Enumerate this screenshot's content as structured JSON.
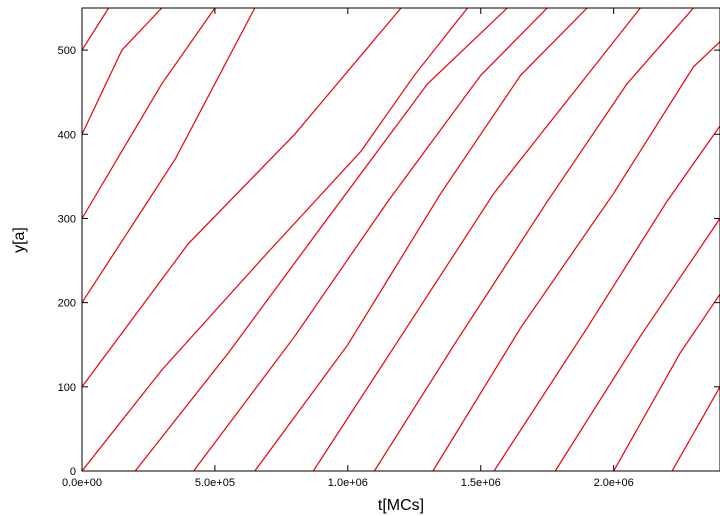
{
  "chart_data": {
    "type": "line",
    "title": "",
    "xlabel": "t[MCs]",
    "ylabel": "y[a]",
    "xlim": [
      0,
      2400000
    ],
    "ylim": [
      0,
      550
    ],
    "x_ticks": [
      {
        "value": 0,
        "label": "0.0e+00"
      },
      {
        "value": 500000,
        "label": "5.0e+05"
      },
      {
        "value": 1000000,
        "label": "1.0e+06"
      },
      {
        "value": 1500000,
        "label": "1.5e+06"
      },
      {
        "value": 2000000,
        "label": "2.0e+06"
      }
    ],
    "y_ticks": [
      {
        "value": 0,
        "label": "0"
      },
      {
        "value": 100,
        "label": "100"
      },
      {
        "value": 200,
        "label": "200"
      },
      {
        "value": 300,
        "label": "300"
      },
      {
        "value": 400,
        "label": "400"
      },
      {
        "value": 500,
        "label": "500"
      }
    ],
    "grid": false,
    "legend": "none",
    "line_color": "#e8000b",
    "series": [
      {
        "x": [
          0,
          300000,
          700000,
          1050000,
          1250000,
          1450000
        ],
        "y": [
          0,
          120,
          260,
          380,
          470,
          550
        ]
      },
      {
        "x": [
          0,
          400000,
          800000,
          1200000
        ],
        "y": [
          100,
          270,
          400,
          550
        ]
      },
      {
        "x": [
          0,
          350000,
          650000
        ],
        "y": [
          200,
          370,
          550
        ]
      },
      {
        "x": [
          0,
          300000,
          500000
        ],
        "y": [
          300,
          460,
          550
        ]
      },
      {
        "x": [
          0,
          150000,
          300000
        ],
        "y": [
          400,
          500,
          550
        ]
      },
      {
        "x": [
          0,
          100000
        ],
        "y": [
          500,
          550
        ]
      },
      {
        "x": [
          200000,
          550000,
          900000,
          1300000,
          1600000
        ],
        "y": [
          0,
          140,
          290,
          460,
          550
        ]
      },
      {
        "x": [
          420000,
          800000,
          1150000,
          1500000,
          1750000
        ],
        "y": [
          0,
          160,
          320,
          470,
          550
        ]
      },
      {
        "x": [
          650000,
          1000000,
          1350000,
          1650000,
          1900000
        ],
        "y": [
          0,
          150,
          330,
          470,
          550
        ]
      },
      {
        "x": [
          870000,
          1200000,
          1550000,
          1850000,
          2100000
        ],
        "y": [
          0,
          160,
          330,
          450,
          550
        ]
      },
      {
        "x": [
          1100000,
          1400000,
          1750000,
          2050000,
          2300000
        ],
        "y": [
          0,
          150,
          320,
          460,
          550
        ]
      },
      {
        "x": [
          1320000,
          1650000,
          2000000,
          2300000,
          2400000
        ],
        "y": [
          0,
          170,
          330,
          480,
          510
        ]
      },
      {
        "x": [
          1550000,
          1900000,
          2200000,
          2400000
        ],
        "y": [
          0,
          170,
          320,
          410
        ]
      },
      {
        "x": [
          1780000,
          2100000,
          2400000
        ],
        "y": [
          0,
          160,
          300
        ]
      },
      {
        "x": [
          2000000,
          2250000,
          2400000
        ],
        "y": [
          0,
          140,
          210
        ]
      },
      {
        "x": [
          2220000,
          2400000
        ],
        "y": [
          0,
          100
        ]
      }
    ]
  }
}
